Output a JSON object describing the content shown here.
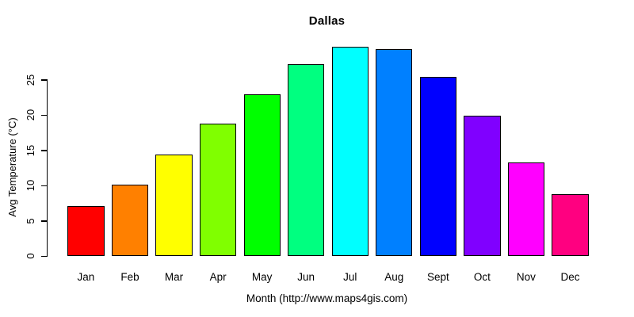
{
  "chart_data": {
    "type": "bar",
    "title": "Dallas",
    "xlabel": "Month (http://www.maps4gis.com)",
    "ylabel": "Avg Temperature (°C)",
    "categories": [
      "Jan",
      "Feb",
      "Mar",
      "Apr",
      "May",
      "Jun",
      "Jul",
      "Aug",
      "Sept",
      "Oct",
      "Nov",
      "Dec"
    ],
    "values": [
      7.1,
      10.1,
      14.4,
      18.8,
      23.0,
      27.3,
      29.7,
      29.4,
      25.5,
      19.9,
      13.3,
      8.8
    ],
    "bar_colors": [
      "#FF0000",
      "#FF8000",
      "#FFFF00",
      "#80FF00",
      "#00FF00",
      "#00FF80",
      "#00FFFF",
      "#0080FF",
      "#0000FF",
      "#8000FF",
      "#FF00FF",
      "#FF0080"
    ],
    "bar_border_color": "#000000",
    "yticks": [
      0,
      5,
      10,
      15,
      20,
      25
    ],
    "ylim": [
      0,
      30
    ],
    "grid": false,
    "legend": null,
    "background_color": "#FFFFFF",
    "text_color": "#000000"
  }
}
